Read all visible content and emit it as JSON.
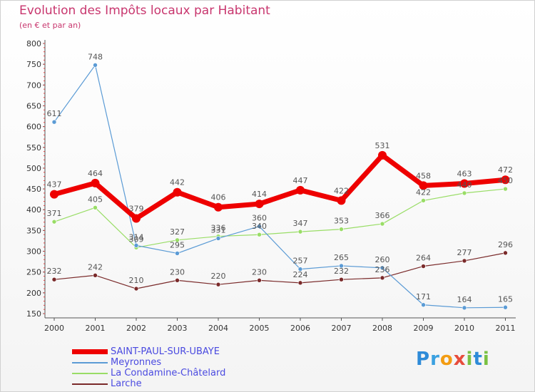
{
  "chart_data": {
    "type": "line",
    "title": "Evolution des Impôts locaux par Habitant",
    "subtitle": "(en € et par an)",
    "xlabel": "",
    "ylabel": "",
    "ylim": [
      150,
      800
    ],
    "yticks": [
      150,
      200,
      250,
      300,
      350,
      400,
      450,
      500,
      550,
      600,
      650,
      700,
      750,
      800
    ],
    "categories": [
      "2000",
      "2001",
      "2002",
      "2003",
      "2004",
      "2005",
      "2006",
      "2007",
      "2008",
      "2009",
      "2010",
      "2011"
    ],
    "grid": false,
    "legend_position": "bottom-left",
    "series": [
      {
        "name": "SAINT-PAUL-SUR-UBAYE",
        "color": "#ee0000",
        "values": [
          437,
          464,
          379,
          442,
          406,
          414,
          447,
          422,
          531,
          458,
          463,
          472
        ]
      },
      {
        "name": "Meyronnes",
        "color": "#5b9bd5",
        "values": [
          611,
          748,
          314,
          295,
          331,
          360,
          257,
          265,
          260,
          171,
          164,
          165
        ]
      },
      {
        "name": "La Condamine-Châtelard",
        "color": "#99dd66",
        "values": [
          371,
          405,
          309,
          327,
          336,
          340,
          347,
          353,
          366,
          422,
          440,
          450
        ]
      },
      {
        "name": "Larche",
        "color": "#7a2a2a",
        "values": [
          232,
          242,
          210,
          230,
          220,
          230,
          224,
          232,
          236,
          264,
          277,
          296
        ]
      }
    ]
  },
  "logo": {
    "letters": [
      {
        "char": "P",
        "color": "#2e8bd8"
      },
      {
        "char": "r",
        "color": "#3aa0e0"
      },
      {
        "char": "o",
        "color": "#f39c12"
      },
      {
        "char": "x",
        "color": "#e74c3c"
      },
      {
        "char": "i",
        "color": "#7ac143"
      },
      {
        "char": "t",
        "color": "#2e8bd8"
      },
      {
        "char": "i",
        "color": "#7ac143"
      }
    ]
  }
}
